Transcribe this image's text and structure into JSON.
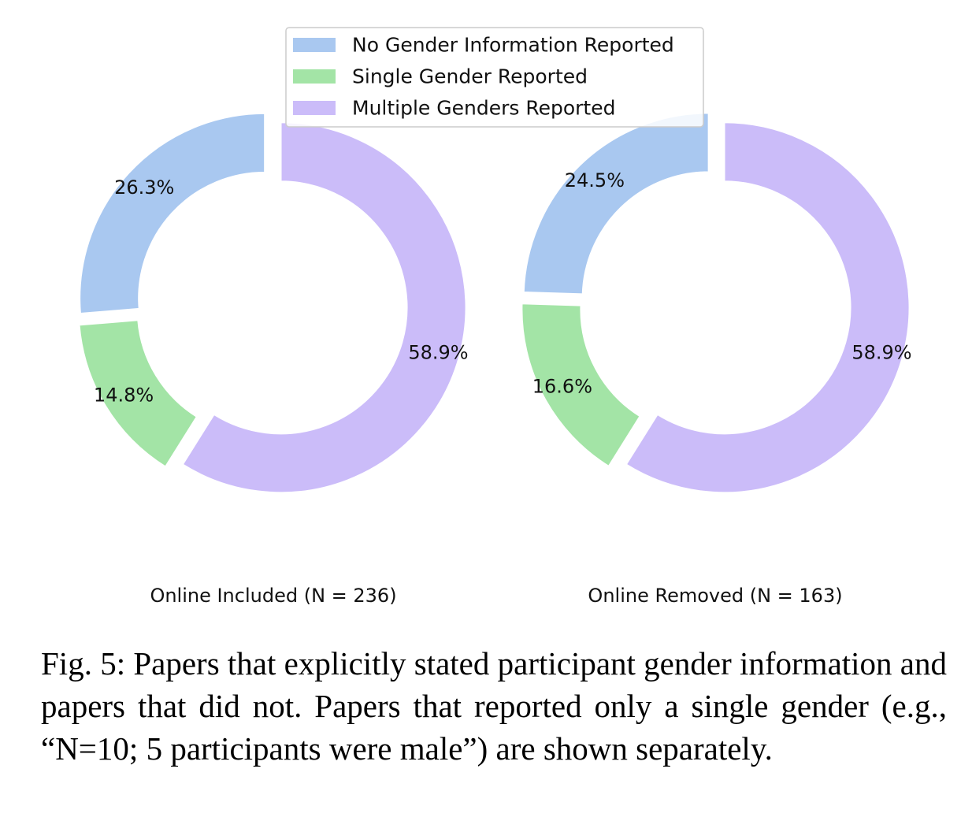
{
  "chart_data": [
    {
      "type": "pie",
      "subtitle": "Online Included (N = 236)",
      "categories": [
        "No Gender Information Reported",
        "Single Gender Reported",
        "Multiple Genders Reported"
      ],
      "values": [
        26.3,
        14.8,
        58.9
      ],
      "labels": [
        "26.3%",
        "14.8%",
        "58.9%"
      ],
      "colors": [
        "#a9c8f0",
        "#a3e4a6",
        "#cbbcf9"
      ]
    },
    {
      "type": "pie",
      "subtitle": "Online Removed (N = 163)",
      "categories": [
        "No Gender Information Reported",
        "Single Gender Reported",
        "Multiple Genders Reported"
      ],
      "values": [
        24.5,
        16.6,
        58.9
      ],
      "labels": [
        "24.5%",
        "16.6%",
        "58.9%"
      ],
      "colors": [
        "#a9c8f0",
        "#a3e4a6",
        "#cbbcf9"
      ]
    }
  ],
  "legend": {
    "placement": "top-center",
    "entries": [
      {
        "label": "No Gender Information Reported",
        "color": "#a9c8f0"
      },
      {
        "label": "Single Gender Reported",
        "color": "#a3e4a6"
      },
      {
        "label": "Multiple Genders Reported",
        "color": "#cbbcf9"
      }
    ]
  },
  "caption": "Fig. 5: Papers that explicitly stated participant gender information and papers that did not. Papers that reported only a single gender (e.g., “N=10; 5 participants were male”) are shown separately."
}
